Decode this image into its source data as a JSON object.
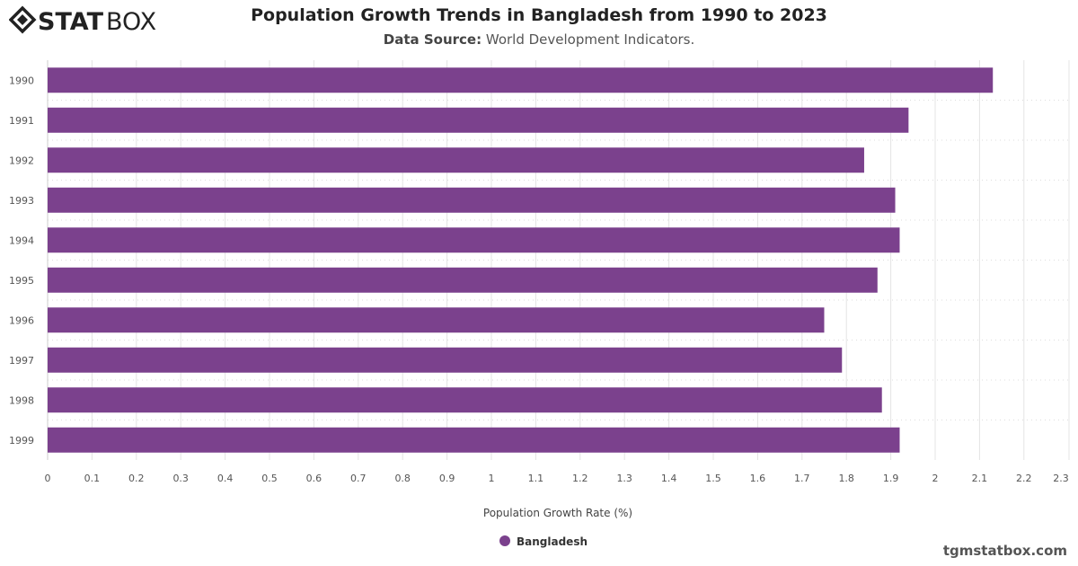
{
  "header": {
    "title": "Population Growth Trends in Bangladesh from 1990 to 2023",
    "source_label": "Data Source:",
    "source_value": "World Development Indicators."
  },
  "logo": {
    "text_bold": "STAT",
    "text_light": "BOX"
  },
  "credit": "tgmstatbox.com",
  "chart_data": {
    "type": "bar",
    "orientation": "horizontal",
    "categories": [
      "1990",
      "1991",
      "1992",
      "1993",
      "1994",
      "1995",
      "1996",
      "1997",
      "1998",
      "1999"
    ],
    "series": [
      {
        "name": "Bangladesh",
        "values": [
          2.13,
          1.94,
          1.84,
          1.91,
          1.92,
          1.87,
          1.75,
          1.79,
          1.88,
          1.92
        ]
      }
    ],
    "xlabel": "Population Growth Rate (%)",
    "xlim": [
      0,
      2.3
    ],
    "xticks": [
      "0",
      "0.1",
      "0.2",
      "0.3",
      "0.4",
      "0.5",
      "0.6",
      "0.7",
      "0.8",
      "0.9",
      "1",
      "1.1",
      "1.2",
      "1.3",
      "1.4",
      "1.5",
      "1.6",
      "1.7",
      "1.8",
      "1.9",
      "2",
      "2.1",
      "2.2",
      "2.3"
    ],
    "grid": true,
    "legend": "bottom",
    "color": "#7b418d"
  }
}
